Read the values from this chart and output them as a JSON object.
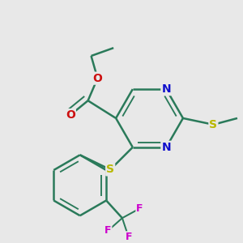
{
  "bg_color": "#e8e8e8",
  "bond_color": "#2a7a5a",
  "atom_colors": {
    "N": "#1010cc",
    "O": "#cc1010",
    "S_yellow": "#b8b800",
    "S_green": "#2a7a5a",
    "F": "#cc00cc",
    "C": "#2a7a5a"
  },
  "font_size": 10,
  "line_width": 1.8
}
